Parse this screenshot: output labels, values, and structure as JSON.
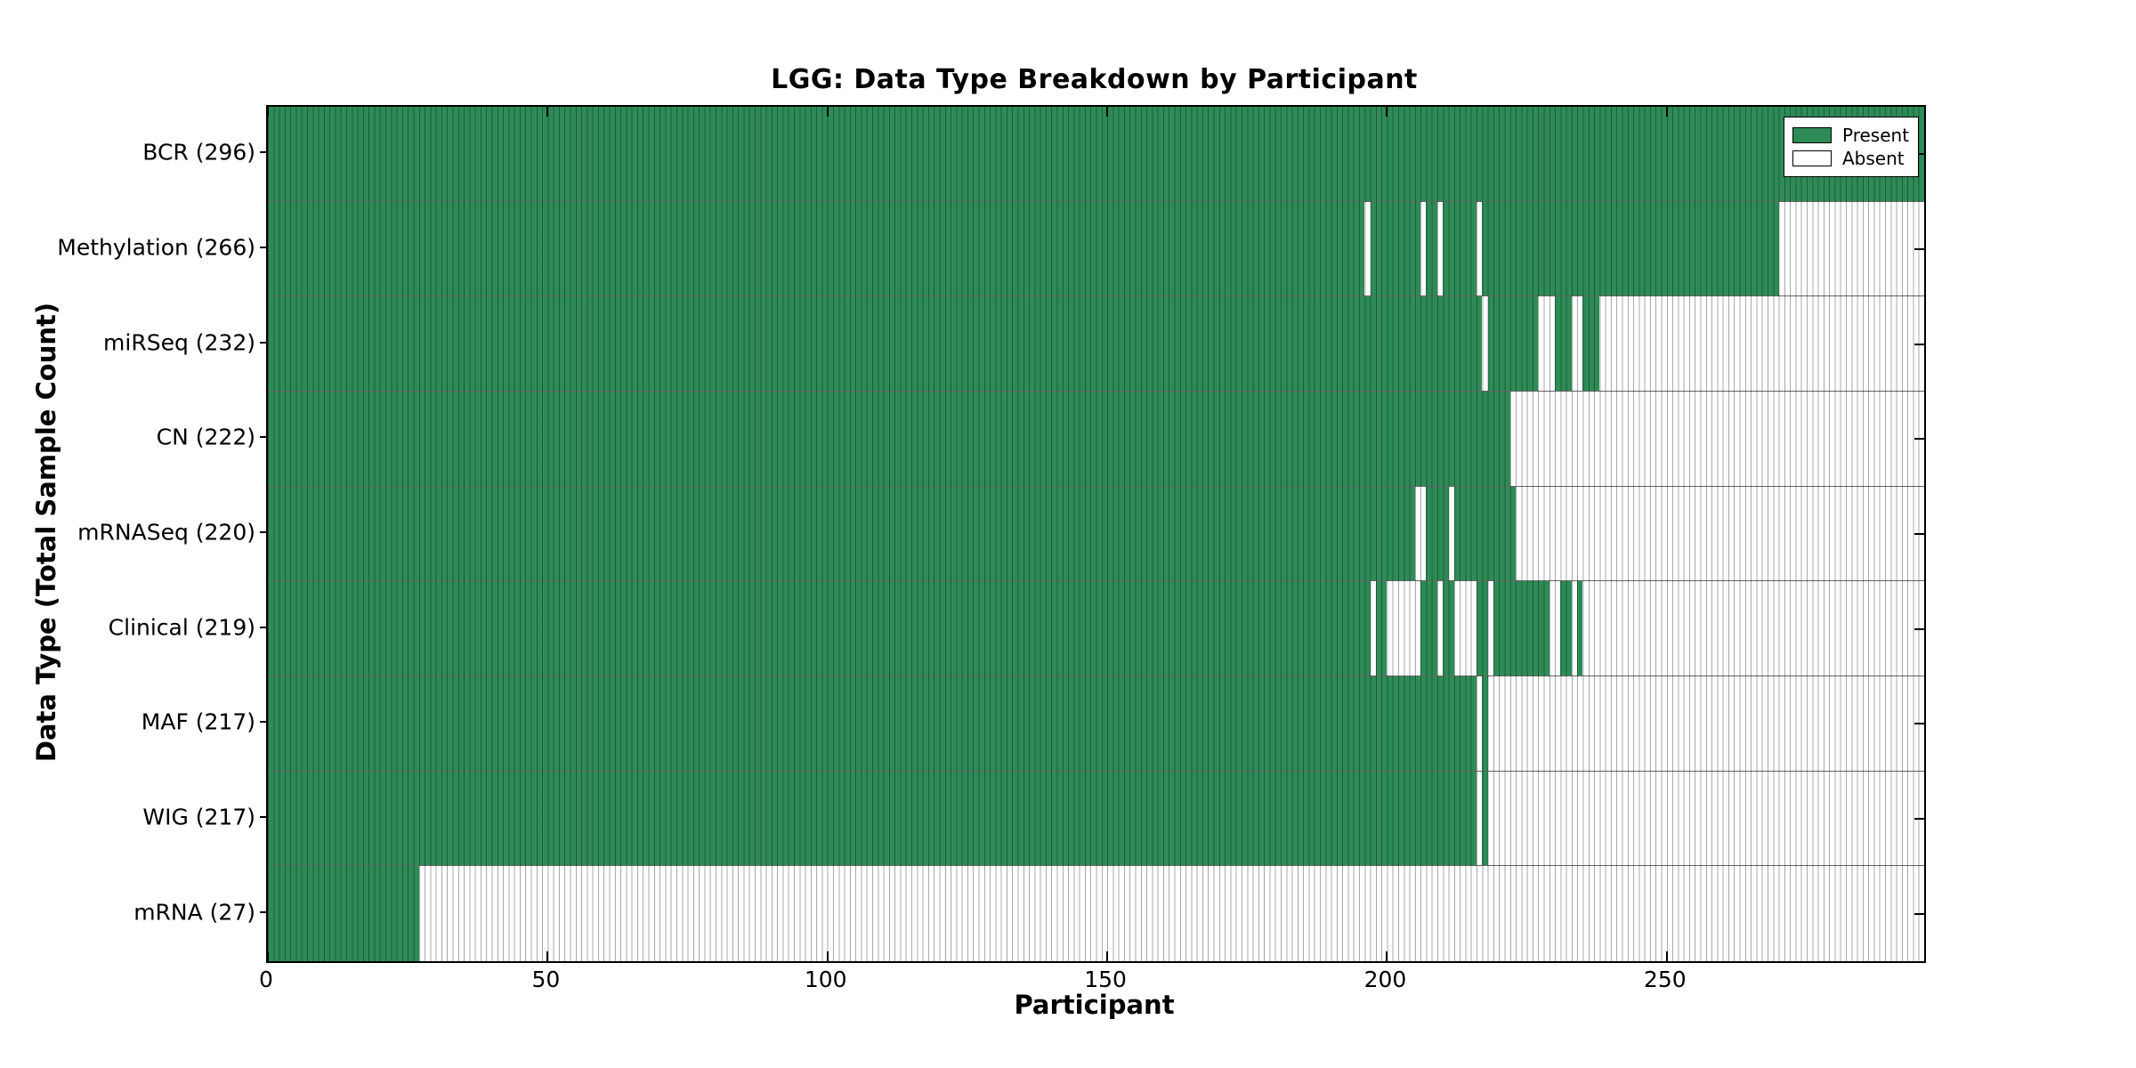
{
  "chart_data": {
    "type": "heatmap",
    "title": "LGG: Data Type Breakdown by Participant",
    "xlabel": "Participant",
    "ylabel": "Data Type (Total Sample Count)",
    "x_ticks": [
      0,
      50,
      100,
      150,
      200,
      250
    ],
    "x_range": [
      0,
      296
    ],
    "n_participants": 296,
    "grid": false,
    "legend_position": "upper-right",
    "colors": {
      "present": "#2e8b57",
      "absent": "#ffffff",
      "bar_edge": "rgba(0,0,0,0.34)",
      "axis": "#000000"
    },
    "legend": {
      "entries": [
        {
          "label": "Present",
          "color": "#2e8b57"
        },
        {
          "label": "Absent",
          "color": "#ffffff"
        }
      ]
    },
    "rows": [
      {
        "label": "BCR (296)",
        "data_type": "BCR",
        "total_samples": 296,
        "present_segments": [
          [
            0,
            296
          ]
        ]
      },
      {
        "label": "Methylation (266)",
        "data_type": "Methylation",
        "total_samples": 266,
        "present_segments": [
          [
            0,
            196
          ],
          [
            197,
            206
          ],
          [
            207,
            209
          ],
          [
            210,
            216
          ],
          [
            217,
            270
          ]
        ]
      },
      {
        "label": "miRSeq (232)",
        "data_type": "miRSeq",
        "total_samples": 232,
        "present_segments": [
          [
            0,
            217
          ],
          [
            218,
            227
          ],
          [
            230,
            233
          ],
          [
            235,
            238
          ]
        ]
      },
      {
        "label": "CN (222)",
        "data_type": "CN",
        "total_samples": 222,
        "present_segments": [
          [
            0,
            222
          ]
        ]
      },
      {
        "label": "mRNASeq (220)",
        "data_type": "mRNASeq",
        "total_samples": 220,
        "present_segments": [
          [
            0,
            205
          ],
          [
            207,
            211
          ],
          [
            212,
            223
          ]
        ]
      },
      {
        "label": "Clinical (219)",
        "data_type": "Clinical",
        "total_samples": 219,
        "present_segments": [
          [
            0,
            197
          ],
          [
            198,
            200
          ],
          [
            206,
            209
          ],
          [
            210,
            212
          ],
          [
            216,
            218
          ],
          [
            219,
            229
          ],
          [
            231,
            233
          ],
          [
            234,
            235
          ]
        ]
      },
      {
        "label": "MAF (217)",
        "data_type": "MAF",
        "total_samples": 217,
        "present_segments": [
          [
            0,
            216
          ],
          [
            217,
            218
          ]
        ]
      },
      {
        "label": "WIG (217)",
        "data_type": "WIG",
        "total_samples": 217,
        "present_segments": [
          [
            0,
            216
          ],
          [
            217,
            218
          ]
        ]
      },
      {
        "label": "mRNA (27)",
        "data_type": "mRNA",
        "total_samples": 27,
        "present_segments": [
          [
            0,
            27
          ]
        ]
      }
    ]
  }
}
